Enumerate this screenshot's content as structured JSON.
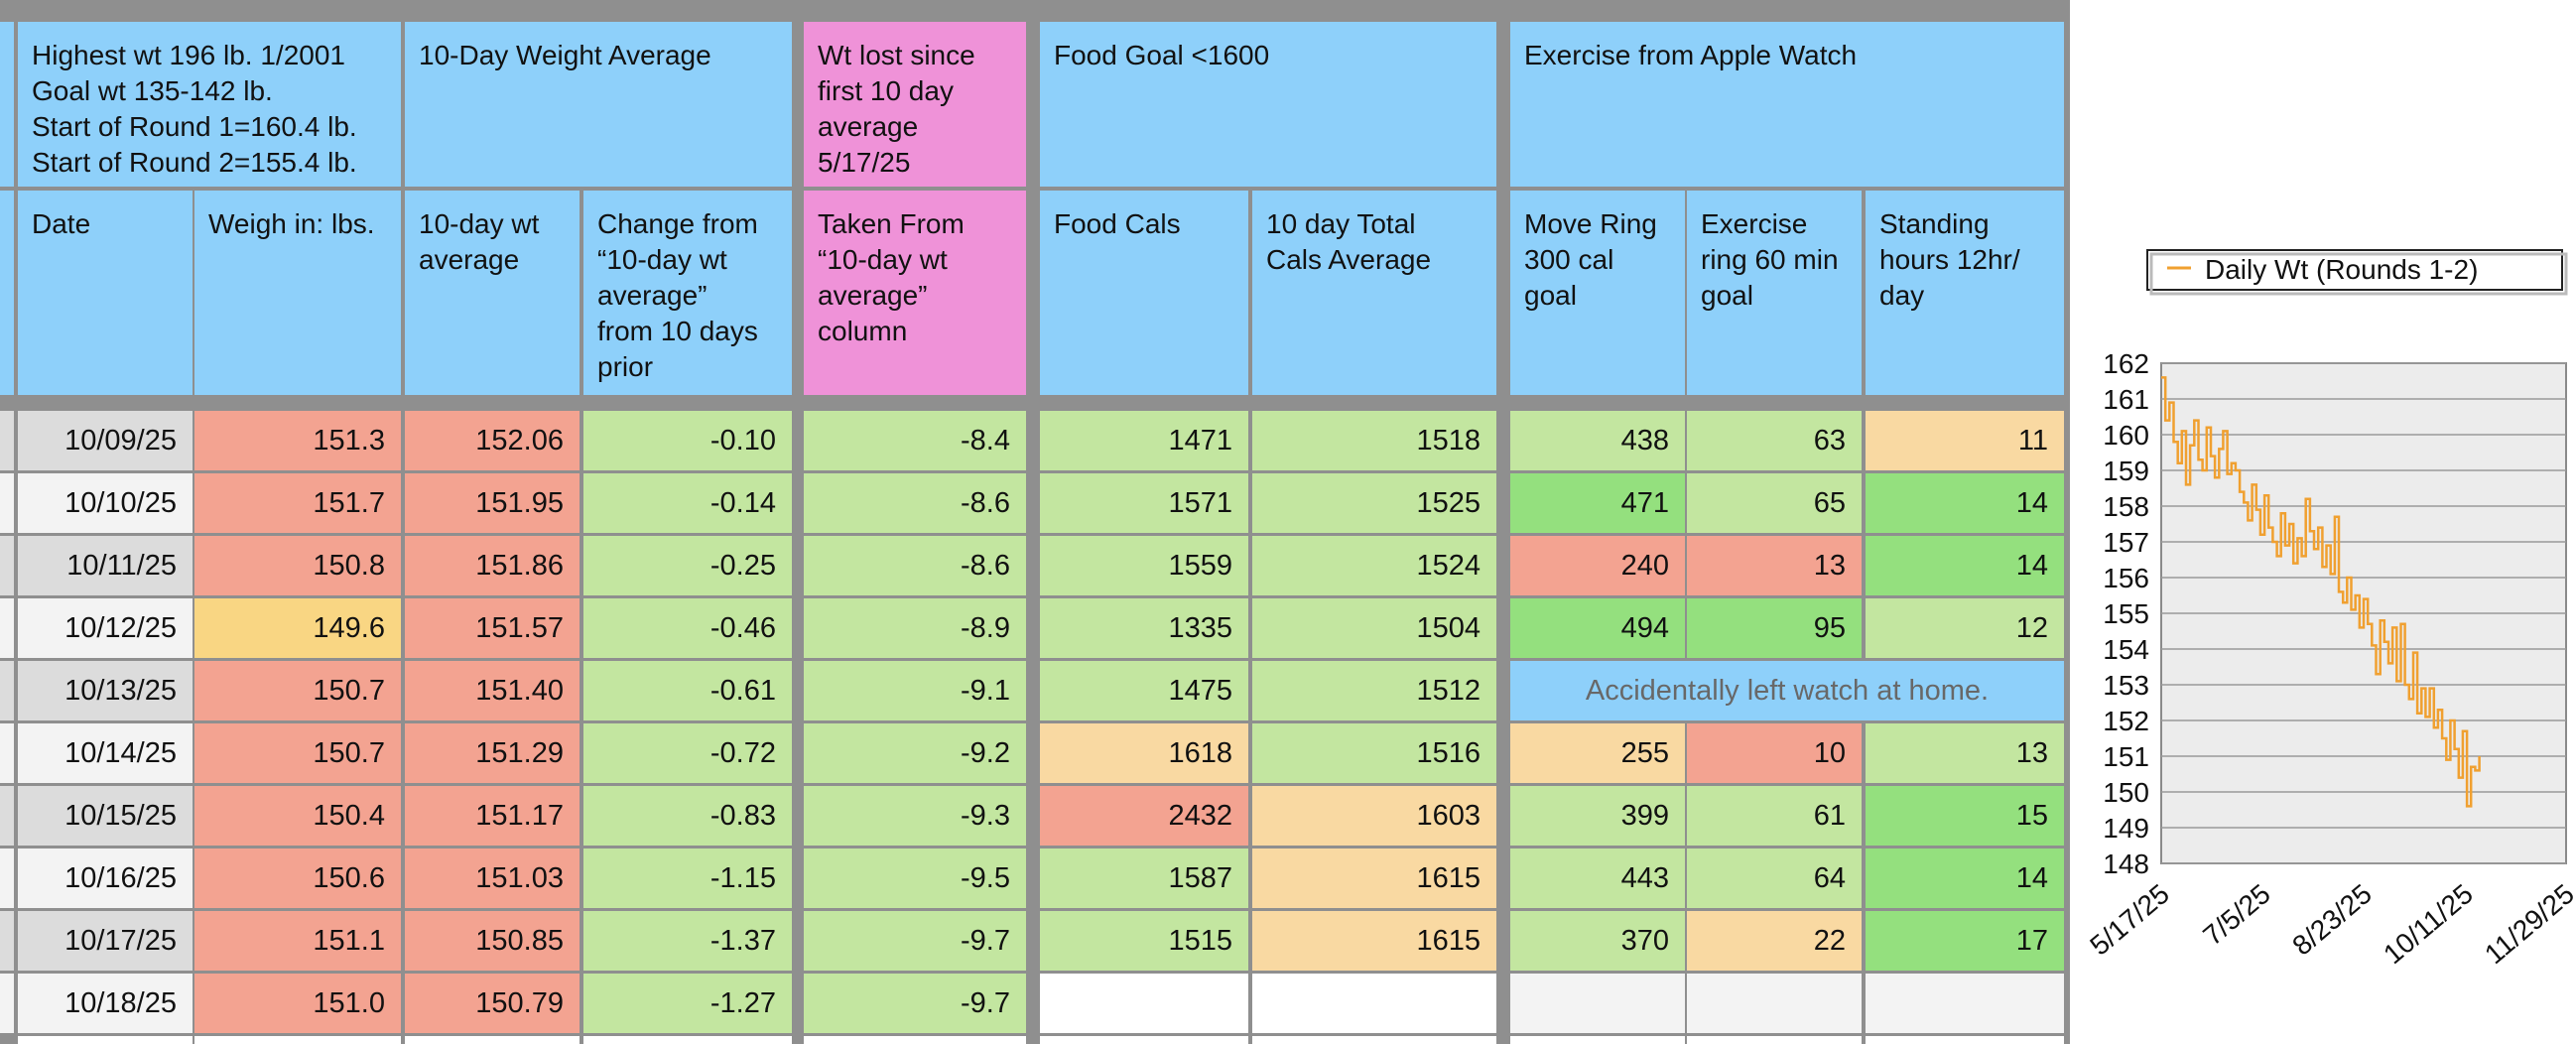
{
  "header": {
    "info": "Highest wt 196 lb.  1/2001\nGoal wt 135-142 lb.\nStart of Round 1=160.4 lb.\nStart of Round 2=155.4 lb.",
    "avg_group": "10-Day Weight Average",
    "wt_lost_group": "Wt lost since\nfirst 10 day\naverage\n5/17/25",
    "food_group": "Food Goal <1600",
    "exercise_group": "Exercise from Apple Watch"
  },
  "columns": {
    "date": "Date",
    "weigh_in": "Weigh in: lbs.",
    "avg": "10-day wt\naverage",
    "change": "Change from\n“10-day wt\naverage”\nfrom 10 days\nprior",
    "taken": "Taken From\n“10-day wt\naverage”\ncolumn",
    "food_cals": "Food Cals",
    "ten_day_cals": "10 day Total\nCals Average",
    "move": "Move Ring\n300 cal\ngoal",
    "exercise": "Exercise\nring 60 min\ngoal",
    "standing": "Standing\nhours 12hr/\nday"
  },
  "rows": [
    {
      "date": "10/09/25",
      "weigh": "151.3",
      "avg": "152.06",
      "change": "-0.10",
      "taken": "-8.4",
      "food": "1471",
      "total": "1518",
      "move": "438",
      "exercise": "63",
      "standing": "11"
    },
    {
      "date": "10/10/25",
      "weigh": "151.7",
      "avg": "151.95",
      "change": "-0.14",
      "taken": "-8.6",
      "food": "1571",
      "total": "1525",
      "move": "471",
      "exercise": "65",
      "standing": "14"
    },
    {
      "date": "10/11/25",
      "weigh": "150.8",
      "avg": "151.86",
      "change": "-0.25",
      "taken": "-8.6",
      "food": "1559",
      "total": "1524",
      "move": "240",
      "exercise": "13",
      "standing": "14"
    },
    {
      "date": "10/12/25",
      "weigh": "149.6",
      "avg": "151.57",
      "change": "-0.46",
      "taken": "-8.9",
      "food": "1335",
      "total": "1504",
      "move": "494",
      "exercise": "95",
      "standing": "12"
    },
    {
      "date": "10/13/25",
      "weigh": "150.7",
      "avg": "151.40",
      "change": "-0.61",
      "taken": "-9.1",
      "food": "1475",
      "total": "1512",
      "note": "Accidentally left watch at home."
    },
    {
      "date": "10/14/25",
      "weigh": "150.7",
      "avg": "151.29",
      "change": "-0.72",
      "taken": "-9.2",
      "food": "1618",
      "total": "1516",
      "move": "255",
      "exercise": "10",
      "standing": "13"
    },
    {
      "date": "10/15/25",
      "weigh": "150.4",
      "avg": "151.17",
      "change": "-0.83",
      "taken": "-9.3",
      "food": "2432",
      "total": "1603",
      "move": "399",
      "exercise": "61",
      "standing": "15"
    },
    {
      "date": "10/16/25",
      "weigh": "150.6",
      "avg": "151.03",
      "change": "-1.15",
      "taken": "-9.5",
      "food": "1587",
      "total": "1615",
      "move": "443",
      "exercise": "64",
      "standing": "14"
    },
    {
      "date": "10/17/25",
      "weigh": "151.1",
      "avg": "150.85",
      "change": "-1.37",
      "taken": "-9.7",
      "food": "1515",
      "total": "1615",
      "move": "370",
      "exercise": "22",
      "standing": "17"
    },
    {
      "date": "10/18/25",
      "weigh": "151.0",
      "avg": "150.79",
      "change": "-1.27",
      "taken": "-9.7",
      "food": "",
      "total": "",
      "move": "",
      "exercise": "",
      "standing": ""
    }
  ],
  "row_colors": {
    "date": [
      "grey",
      "lgrey",
      "grey",
      "lgrey",
      "grey",
      "lgrey",
      "grey",
      "lgrey",
      "grey",
      "lgrey"
    ],
    "weigh": [
      "red",
      "red",
      "red",
      "yellow",
      "red",
      "red",
      "red",
      "red",
      "red",
      "red"
    ],
    "avg": [
      "red",
      "red",
      "red",
      "red",
      "red",
      "red",
      "red",
      "red",
      "red",
      "red"
    ],
    "change": [
      "green",
      "green",
      "green",
      "green",
      "green",
      "green",
      "green",
      "green",
      "green",
      "green"
    ],
    "taken": [
      "green",
      "green",
      "green",
      "green",
      "green",
      "green",
      "green",
      "green",
      "green",
      "green"
    ],
    "food": [
      "green",
      "green",
      "green",
      "green",
      "green",
      "orange",
      "red",
      "green",
      "green",
      "white"
    ],
    "total": [
      "green",
      "green",
      "green",
      "green",
      "green",
      "green",
      "orange",
      "orange",
      "orange",
      "white"
    ],
    "move": [
      "green",
      "dgreen",
      "red",
      "dgreen",
      "none",
      "orange",
      "green",
      "green",
      "green",
      "lgrey"
    ],
    "exercise": [
      "green",
      "green",
      "red",
      "dgreen",
      "none",
      "red",
      "green",
      "green",
      "orange",
      "lgrey"
    ],
    "standing": [
      "orange",
      "dgreen",
      "dgreen",
      "green",
      "none",
      "green",
      "dgreen",
      "dgreen",
      "dgreen",
      "lgrey"
    ]
  },
  "palette": {
    "grey": "#dcdcdc",
    "lgrey": "#f3f3f3",
    "red": "#f3a391",
    "yellow": "#f9d683",
    "green": "#c3e6a0",
    "dgreen": "#94e07e",
    "orange": "#f9d9a2",
    "white": "#ffffff",
    "blue": "#8ed0fa",
    "pink": "#ef92d8",
    "line": "#f0a030"
  },
  "chart_data": {
    "type": "line",
    "legend": "Daily Wt (Rounds 1-2)",
    "legend_position": "top",
    "grid": true,
    "ylim": [
      148,
      162
    ],
    "y_ticks": [
      "162",
      "161",
      "160",
      "159",
      "158",
      "157",
      "156",
      "155",
      "154",
      "153",
      "152",
      "151",
      "150",
      "149",
      "148"
    ],
    "x_ticks": [
      "5/17/25",
      "7/5/25",
      "8/23/25",
      "10/11/25",
      "11/29/25"
    ],
    "xlim": [
      "5/17/25",
      "11/29/25"
    ],
    "series": [
      {
        "name": "Daily Wt (Rounds 1-2)",
        "x": [
          "5/17/25",
          "5/19/25",
          "5/21/25",
          "5/23/25",
          "5/25/25",
          "5/27/25",
          "5/29/25",
          "5/31/25",
          "6/2/25",
          "6/4/25",
          "6/6/25",
          "6/8/25",
          "6/10/25",
          "6/12/25",
          "6/14/25",
          "6/16/25",
          "6/18/25",
          "6/20/25",
          "6/22/25",
          "6/24/25",
          "6/26/25",
          "6/28/25",
          "6/30/25",
          "7/2/25",
          "7/4/25",
          "7/6/25",
          "7/8/25",
          "7/10/25",
          "7/12/25",
          "7/14/25",
          "7/16/25",
          "7/18/25",
          "7/20/25",
          "7/22/25",
          "7/24/25",
          "7/26/25",
          "7/28/25",
          "7/30/25",
          "8/1/25",
          "8/3/25",
          "8/5/25",
          "8/7/25",
          "8/9/25",
          "8/11/25",
          "8/13/25",
          "8/15/25",
          "8/17/25",
          "8/19/25",
          "8/21/25",
          "8/23/25",
          "8/25/25",
          "8/27/25",
          "8/29/25",
          "8/31/25",
          "9/2/25",
          "9/4/25",
          "9/6/25",
          "9/8/25",
          "9/10/25",
          "9/12/25",
          "9/14/25",
          "9/16/25",
          "9/18/25",
          "9/20/25",
          "9/22/25",
          "9/24/25",
          "9/26/25",
          "9/28/25",
          "9/30/25",
          "10/2/25",
          "10/4/25",
          "10/6/25",
          "10/8/25",
          "10/10/25",
          "10/12/25",
          "10/14/25",
          "10/16/25",
          "10/18/25"
        ],
        "y": [
          161.6,
          160.4,
          160.9,
          159.8,
          159.2,
          160.1,
          158.6,
          159.7,
          160.4,
          159.3,
          159.0,
          160.2,
          159.4,
          158.8,
          159.6,
          160.1,
          158.9,
          159.2,
          159.0,
          158.4,
          158.1,
          157.6,
          158.6,
          157.9,
          157.2,
          158.3,
          157.4,
          157.0,
          156.6,
          157.8,
          156.9,
          157.5,
          156.4,
          157.1,
          156.6,
          158.2,
          157.3,
          156.8,
          157.4,
          156.3,
          156.9,
          156.1,
          157.7,
          155.6,
          155.3,
          156.0,
          155.1,
          155.5,
          154.6,
          155.4,
          154.7,
          154.1,
          153.3,
          154.8,
          154.2,
          153.6,
          154.6,
          153.1,
          154.7,
          153.0,
          152.6,
          153.9,
          152.2,
          152.9,
          152.1,
          152.9,
          151.8,
          152.3,
          151.5,
          150.9,
          152.0,
          151.2,
          150.4,
          151.7,
          149.6,
          150.7,
          150.6,
          151.0
        ]
      }
    ]
  }
}
